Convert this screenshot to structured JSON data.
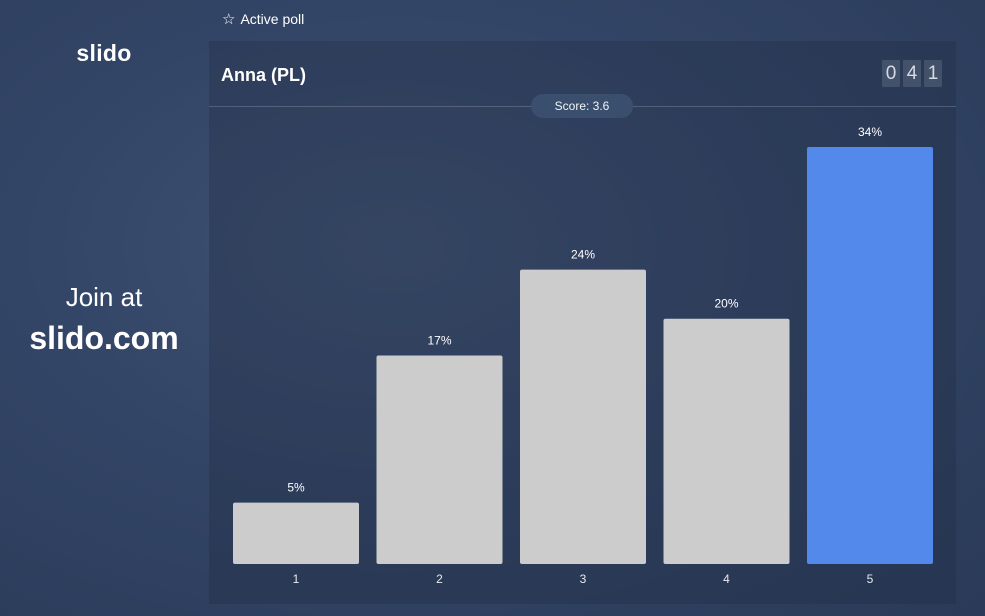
{
  "sidebar": {
    "logo": "slido",
    "join_text": "Join at",
    "join_url": "slido.com"
  },
  "topbar": {
    "status_label": "Active poll",
    "status_icon": "star-outline-icon"
  },
  "poll": {
    "title": "Anna (PL)",
    "vote_count_digits": [
      "0",
      "4",
      "1"
    ],
    "score_label": "Score: 3.6"
  },
  "colors": {
    "bar_default": "#cccccc",
    "bar_highlight": "#5289ea",
    "background": "#334566"
  },
  "chart_data": {
    "type": "bar",
    "categories": [
      "1",
      "2",
      "3",
      "4",
      "5"
    ],
    "values": [
      5,
      17,
      24,
      20,
      34
    ],
    "value_labels": [
      "5%",
      "17%",
      "24%",
      "20%",
      "34%"
    ],
    "highlight_index": 4,
    "ylim": [
      0,
      34
    ],
    "grid": false
  }
}
